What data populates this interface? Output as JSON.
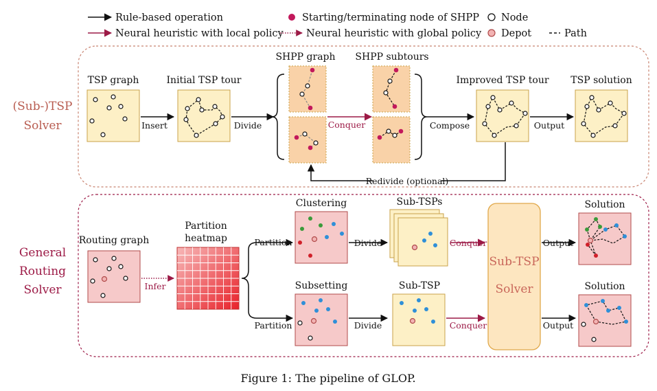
{
  "legend": {
    "rule_based": "Rule-based operation",
    "neural_local": "Neural heuristic with local policy",
    "neural_global": "Neural heuristic with global policy",
    "start_term": "Starting/terminating node of SHPP",
    "node": "Node",
    "depot": "Depot",
    "path": "Path"
  },
  "tsp_solver": {
    "label_line1": "(Sub-)TSP",
    "label_line2": "Solver",
    "tsp_graph": "TSP graph",
    "initial_tour": "Initial TSP tour",
    "shpp_graph": "SHPP graph",
    "shpp_subtours": "SHPP subtours",
    "improved_tour": "Improved TSP tour",
    "tsp_solution": "TSP solution",
    "insert": "Insert",
    "divide": "Divide",
    "conquer": "Conquer",
    "compose": "Compose",
    "output": "Output",
    "redivide": "Redivide (optional)"
  },
  "routing_solver": {
    "label_line1": "General",
    "label_line2": "Routing",
    "label_line3": "Solver",
    "routing_graph": "Routing graph",
    "heatmap_line1": "Partition",
    "heatmap_line2": "heatmap",
    "infer": "Infer",
    "clustering": "Clustering",
    "subsetting": "Subsetting",
    "sub_tsps": "Sub-TSPs",
    "sub_tsp": "Sub-TSP",
    "partition_top": "Partition",
    "partition_bottom": "Partition",
    "divide_top": "Divide",
    "divide_bottom": "Divide",
    "conquer_top": "Conquer",
    "conquer_bottom": "Conquer",
    "output_top": "Output",
    "output_bottom": "Output",
    "solution_top": "Solution",
    "solution_bottom": "Solution",
    "big_box_line1": "Sub-TSP",
    "big_box_line2": "Solver"
  },
  "caption": "Figure 1: The pipeline of GLOP.",
  "colors": {
    "tsp_box_fill": "#fdf0c6",
    "tsp_box_stroke": "#c9a24a",
    "shpp_box_fill": "#f9d2a8",
    "routing_box_fill": "#f6c9c9",
    "routing_box_stroke": "#b04a4a",
    "subtsp_solver_fill": "#fde6c0",
    "subtsp_solver_stroke": "#e0a84a",
    "magenta": "#9c1a46",
    "node_magenta": "#c2185b",
    "node_blue": "#2f8fd8",
    "node_green": "#3a9a3a",
    "node_red": "#d0202a",
    "depot_fill": "#f2b3b3"
  }
}
